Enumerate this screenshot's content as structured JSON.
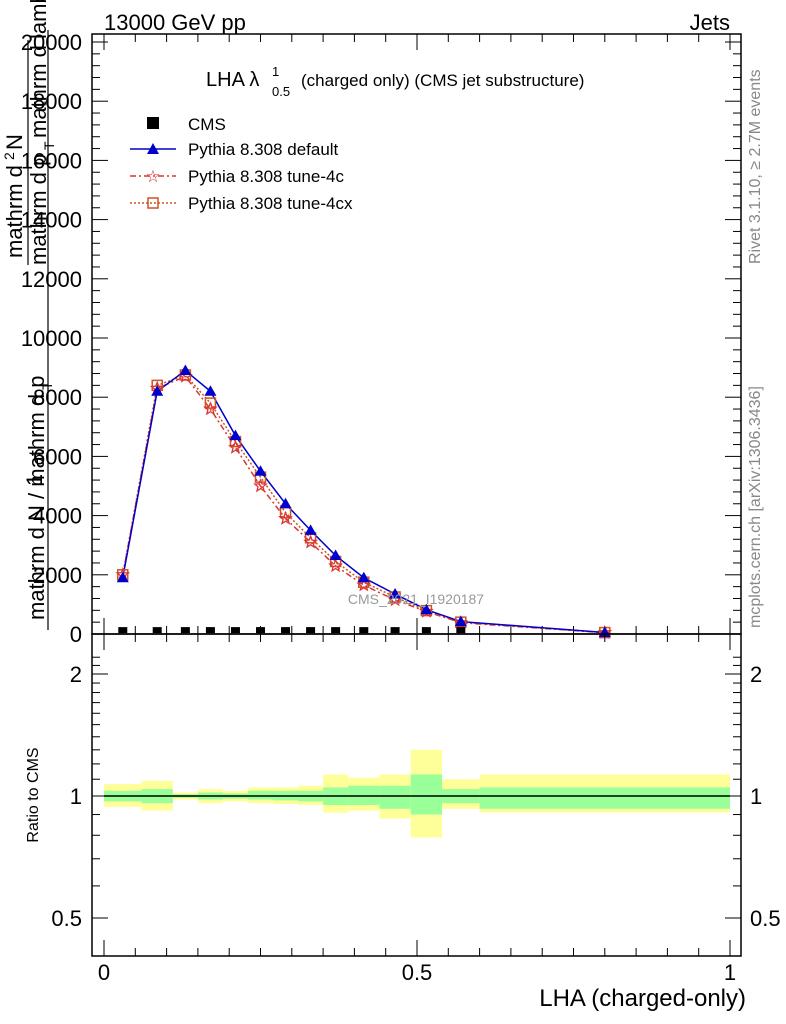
{
  "header": {
    "left": "13000 GeV pp",
    "right": "Jets"
  },
  "side_labels": {
    "rivet": "Rivet 3.1.10, ≥ 2.7M events",
    "mcplots": "mcplots.cern.ch [arXiv:1306.3436]"
  },
  "watermark": "CMS_2021_I1920187",
  "colors": {
    "cms": "#000000",
    "default": "#0000cc",
    "tune4c": "#dd3333",
    "tune4cx": "#cc5522",
    "band_inner": "#99ff99",
    "band_outer": "#ffff99"
  },
  "chart_data": [
    {
      "type": "line",
      "title": "LHA λ",
      "title_sup": "1",
      "title_sub": "0.5",
      "title_rest": "(charged only) (CMS jet substructure)",
      "ylabel_num": "1",
      "ylabel_den": "mathrm d N / mathrm d p",
      "ylabel_den_sub": "T",
      "ylabel_right": "mathrm d",
      "ylabel_right_sup": "2",
      "ylabel_right_rest": "N",
      "ylabel_right_den": "mathrm d p",
      "ylabel_right_den_sub": "T",
      "ylabel_right_den_rest": "mathrm d lambda",
      "xlim": [
        0,
        1
      ],
      "ylim": [
        0,
        20000
      ],
      "y_ticks": [
        0,
        2000,
        4000,
        6000,
        8000,
        10000,
        12000,
        14000,
        16000,
        18000,
        20000
      ],
      "y_tick_labels": [
        "0",
        "2000",
        "4000",
        "6000",
        "8000",
        "10000",
        "12000",
        "14000",
        "16000",
        "18000",
        "20000"
      ],
      "legend": {
        "placement": "top-left",
        "entries": [
          "CMS",
          "Pythia 8.308 default",
          "Pythia 8.308 tune-4c",
          "Pythia 8.308 tune-4cx"
        ]
      },
      "series": [
        {
          "name": "CMS",
          "x": [
            0.03,
            0.085,
            0.13,
            0.17,
            0.21,
            0.25,
            0.29,
            0.33,
            0.37,
            0.415,
            0.465,
            0.515,
            0.57
          ],
          "values": [
            30,
            30,
            30,
            30,
            30,
            30,
            30,
            30,
            30,
            30,
            30,
            30,
            30
          ]
        },
        {
          "name": "Pythia 8.308 default",
          "x": [
            0.03,
            0.085,
            0.13,
            0.17,
            0.21,
            0.25,
            0.29,
            0.33,
            0.37,
            0.415,
            0.465,
            0.515,
            0.57,
            0.8
          ],
          "values": [
            1900,
            8200,
            8900,
            8200,
            6700,
            5500,
            4400,
            3500,
            2650,
            1900,
            1350,
            820,
            420,
            50
          ]
        },
        {
          "name": "Pythia 8.308 tune-4c",
          "x": [
            0.03,
            0.085,
            0.13,
            0.17,
            0.21,
            0.25,
            0.29,
            0.33,
            0.37,
            0.415,
            0.465,
            0.515,
            0.57,
            0.8
          ],
          "values": [
            2000,
            8300,
            8700,
            7600,
            6300,
            5000,
            3900,
            3100,
            2300,
            1650,
            1150,
            760,
            380,
            45
          ]
        },
        {
          "name": "Pythia 8.308 tune-4cx",
          "x": [
            0.03,
            0.085,
            0.13,
            0.17,
            0.21,
            0.25,
            0.29,
            0.33,
            0.37,
            0.415,
            0.465,
            0.515,
            0.57,
            0.8
          ],
          "values": [
            2000,
            8400,
            8750,
            7800,
            6500,
            5300,
            4100,
            3250,
            2450,
            1750,
            1250,
            790,
            400,
            48
          ]
        }
      ]
    },
    {
      "type": "area",
      "ylabel": "Ratio to CMS",
      "xlabel": "LHA (charged-only)",
      "xlim": [
        0,
        1
      ],
      "ylim": [
        0.4,
        2.3
      ],
      "y_ticks": [
        0.5,
        1,
        2
      ],
      "y_tick_labels": [
        "0.5",
        "1",
        "2"
      ],
      "x_ticks": [
        0,
        0.5,
        1
      ],
      "x_tick_labels": [
        "0",
        "0.5",
        "1"
      ],
      "reference": 1,
      "bins": [
        {
          "lo": 0.0,
          "hi": 0.06,
          "inner": [
            0.97,
            1.03
          ],
          "outer": [
            0.94,
            1.07
          ]
        },
        {
          "lo": 0.06,
          "hi": 0.11,
          "inner": [
            0.96,
            1.04
          ],
          "outer": [
            0.92,
            1.09
          ]
        },
        {
          "lo": 0.11,
          "hi": 0.15,
          "inner": [
            0.99,
            1.01
          ],
          "outer": [
            0.98,
            1.02
          ]
        },
        {
          "lo": 0.15,
          "hi": 0.19,
          "inner": [
            0.98,
            1.02
          ],
          "outer": [
            0.96,
            1.04
          ]
        },
        {
          "lo": 0.19,
          "hi": 0.23,
          "inner": [
            0.985,
            1.015
          ],
          "outer": [
            0.97,
            1.03
          ]
        },
        {
          "lo": 0.23,
          "hi": 0.27,
          "inner": [
            0.98,
            1.03
          ],
          "outer": [
            0.96,
            1.05
          ]
        },
        {
          "lo": 0.27,
          "hi": 0.31,
          "inner": [
            0.975,
            1.03
          ],
          "outer": [
            0.955,
            1.05
          ]
        },
        {
          "lo": 0.31,
          "hi": 0.35,
          "inner": [
            0.97,
            1.03
          ],
          "outer": [
            0.95,
            1.06
          ]
        },
        {
          "lo": 0.35,
          "hi": 0.39,
          "inner": [
            0.95,
            1.05
          ],
          "outer": [
            0.91,
            1.13
          ]
        },
        {
          "lo": 0.39,
          "hi": 0.44,
          "inner": [
            0.95,
            1.06
          ],
          "outer": [
            0.92,
            1.11
          ]
        },
        {
          "lo": 0.44,
          "hi": 0.49,
          "inner": [
            0.93,
            1.06
          ],
          "outer": [
            0.88,
            1.13
          ]
        },
        {
          "lo": 0.49,
          "hi": 0.54,
          "inner": [
            0.9,
            1.13
          ],
          "outer": [
            0.79,
            1.3
          ]
        },
        {
          "lo": 0.54,
          "hi": 0.6,
          "inner": [
            0.96,
            1.04
          ],
          "outer": [
            0.93,
            1.1
          ]
        },
        {
          "lo": 0.6,
          "hi": 1.0,
          "inner": [
            0.93,
            1.05
          ],
          "outer": [
            0.91,
            1.13
          ]
        }
      ]
    }
  ]
}
